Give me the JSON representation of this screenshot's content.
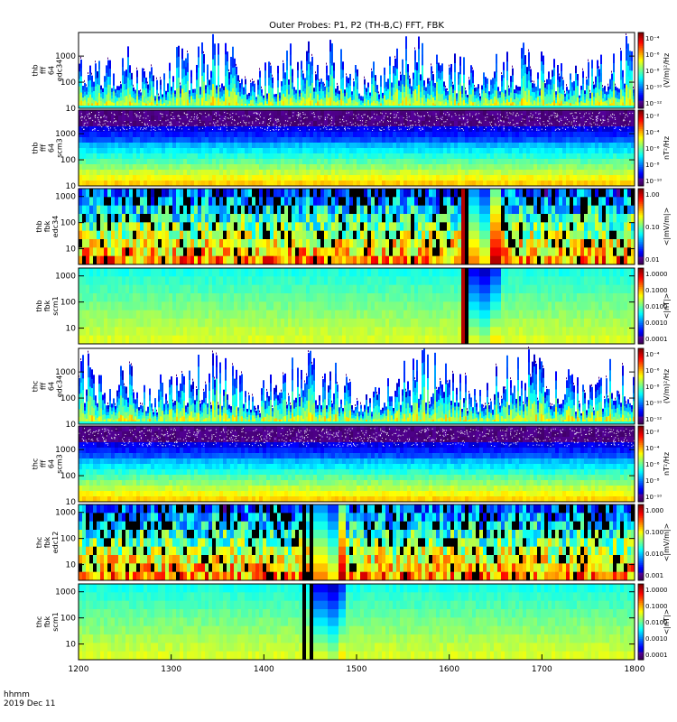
{
  "title": "Outer Probes: P1, P2 (TH-B,C) FFT, FBK",
  "time_label_line1": "hhmm",
  "time_label_line2": "2019 Dec 11",
  "chart_data": {
    "type": "heatmap",
    "x_range": [
      1200,
      1800
    ],
    "x_ticks": [
      "1200",
      "1300",
      "1400",
      "1500",
      "1600",
      "1700",
      "1800"
    ],
    "x_tick_values": [
      1200,
      1300,
      1400,
      1500,
      1600,
      1700,
      1800
    ],
    "panels": [
      {
        "id": "thb-fff-e",
        "ylabel": [
          "thb",
          "fff",
          "64",
          "edc34"
        ],
        "y_ticks": [
          "1000",
          "100",
          "10"
        ],
        "y_tick_values": [
          1000,
          100,
          10
        ],
        "y_range": [
          10,
          8000
        ],
        "zlabel": "(V/m)²/Hz",
        "z_ticks": [
          "10⁻⁴",
          "10⁻⁶",
          "10⁻⁸",
          "10⁻¹⁰",
          "10⁻¹²"
        ],
        "kind": "fff-e",
        "gaps": []
      },
      {
        "id": "thb-fff-b",
        "ylabel": [
          "thb",
          "fff",
          "64",
          "scm3"
        ],
        "y_ticks": [
          "1000",
          "100",
          "10"
        ],
        "y_tick_values": [
          1000,
          100,
          10
        ],
        "y_range": [
          10,
          8000
        ],
        "zlabel": "nT²/Hz",
        "z_ticks": [
          "10⁻²",
          "10⁻⁴",
          "10⁻⁶",
          "10⁻⁸",
          "10⁻¹⁰"
        ],
        "kind": "fff-b",
        "gaps": []
      },
      {
        "id": "thb-fbk-e",
        "ylabel": [
          "thb",
          "fbk",
          "edc34"
        ],
        "y_ticks": [
          "1000",
          "100",
          "10"
        ],
        "y_tick_values": [
          1000,
          100,
          10
        ],
        "y_range": [
          2.5,
          2000
        ],
        "zlabel": "<|mV/m|>",
        "z_ticks": [
          "1.00",
          "0.10",
          "0.01"
        ],
        "kind": "fbk-e",
        "gaps": [
          [
            1610,
            1618
          ]
        ],
        "block_start": 1618
      },
      {
        "id": "thb-fbk-b",
        "ylabel": [
          "thb",
          "fbk",
          "scm1"
        ],
        "y_ticks": [
          "1000",
          "100",
          "10"
        ],
        "y_tick_values": [
          1000,
          100,
          10
        ],
        "y_range": [
          2.5,
          2000
        ],
        "zlabel": "<|nT|>",
        "z_ticks": [
          "1.0000",
          "0.1000",
          "0.0100",
          "0.0010",
          "0.0001"
        ],
        "kind": "fbk-b",
        "gaps": [
          [
            1610,
            1618
          ]
        ],
        "block_start": 1618
      },
      {
        "id": "thc-fff-e",
        "ylabel": [
          "thc",
          "fff",
          "64",
          "edc34"
        ],
        "y_ticks": [
          "1000",
          "100",
          "10"
        ],
        "y_tick_values": [
          1000,
          100,
          10
        ],
        "y_range": [
          10,
          8000
        ],
        "zlabel": "(V/m)²/Hz",
        "z_ticks": [
          "10⁻⁴",
          "10⁻⁶",
          "10⁻⁸",
          "10⁻¹⁰",
          "10⁻¹²"
        ],
        "kind": "fff-e",
        "gaps": []
      },
      {
        "id": "thc-fff-b",
        "ylabel": [
          "thc",
          "fff",
          "64",
          "scm3"
        ],
        "y_ticks": [
          "1000",
          "100",
          "10"
        ],
        "y_tick_values": [
          1000,
          100,
          10
        ],
        "y_range": [
          10,
          8000
        ],
        "zlabel": "nT²/Hz",
        "z_ticks": [
          "10⁻²",
          "10⁻⁴",
          "10⁻⁶",
          "10⁻⁸",
          "10⁻¹⁰"
        ],
        "kind": "fff-b",
        "gaps": []
      },
      {
        "id": "thc-fbk-e",
        "ylabel": [
          "thc",
          "fbk",
          "edc12"
        ],
        "y_ticks": [
          "1000",
          "100",
          "10"
        ],
        "y_tick_values": [
          1000,
          100,
          10
        ],
        "y_range": [
          2.5,
          2000
        ],
        "zlabel": "<|mV/m|>",
        "z_ticks": [
          "1.000",
          "0.100",
          "0.010",
          "0.001"
        ],
        "kind": "fbk-e",
        "gaps": [
          [
            1438,
            1442
          ],
          [
            1449,
            1453
          ]
        ],
        "block_start": 1453
      },
      {
        "id": "thc-fbk-b",
        "ylabel": [
          "thc",
          "fbk",
          "scm1"
        ],
        "y_ticks": [
          "1000",
          "100",
          "10"
        ],
        "y_tick_values": [
          1000,
          100,
          10
        ],
        "y_range": [
          2.5,
          2000
        ],
        "zlabel": "<|nT|>",
        "z_ticks": [
          "1.0000",
          "0.1000",
          "0.0100",
          "0.0010",
          "0.0001"
        ],
        "kind": "fbk-b",
        "gaps": [
          [
            1438,
            1442
          ],
          [
            1449,
            1453
          ]
        ],
        "block_start": 1453
      }
    ]
  }
}
